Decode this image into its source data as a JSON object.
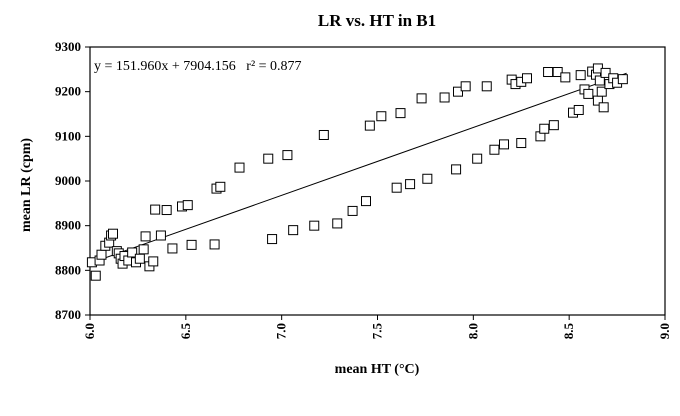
{
  "chart_data": {
    "type": "scatter",
    "title": "LR vs. HT in B1",
    "xlabel": "mean HT (°C)",
    "ylabel": "mean LR (cpm)",
    "xlim": [
      6.0,
      9.0
    ],
    "ylim": [
      8700,
      9300
    ],
    "x_ticks": [
      "6.0",
      "6.5",
      "7.0",
      "7.5",
      "8.0",
      "8.5",
      "9.0"
    ],
    "y_ticks": [
      "8700",
      "8800",
      "8900",
      "9000",
      "9100",
      "9200",
      "9300"
    ],
    "x_tick_values": [
      6.0,
      6.5,
      7.0,
      7.5,
      8.0,
      8.5,
      9.0
    ],
    "y_tick_values": [
      8700,
      8800,
      8900,
      9000,
      9100,
      9200,
      9300
    ],
    "annotation": "y = 151.960x + 7904.156   r² = 0.877",
    "grid": false,
    "legend": "none",
    "marker": "open-square",
    "fit_line": {
      "slope": 151.96,
      "intercept": 7904.156,
      "x_range": [
        6.0,
        8.8
      ]
    },
    "points": [
      [
        6.01,
        8818
      ],
      [
        6.03,
        8788
      ],
      [
        6.05,
        8822
      ],
      [
        6.06,
        8835
      ],
      [
        6.08,
        8855
      ],
      [
        6.1,
        8862
      ],
      [
        6.11,
        8878
      ],
      [
        6.12,
        8882
      ],
      [
        6.14,
        8843
      ],
      [
        6.15,
        8838
      ],
      [
        6.16,
        8826
      ],
      [
        6.17,
        8815
      ],
      [
        6.18,
        8832
      ],
      [
        6.2,
        8822
      ],
      [
        6.22,
        8840
      ],
      [
        6.24,
        8818
      ],
      [
        6.26,
        8826
      ],
      [
        6.28,
        8847
      ],
      [
        6.29,
        8876
      ],
      [
        6.31,
        8809
      ],
      [
        6.33,
        8820
      ],
      [
        6.34,
        8936
      ],
      [
        6.37,
        8878
      ],
      [
        6.4,
        8935
      ],
      [
        6.43,
        8849
      ],
      [
        6.48,
        8943
      ],
      [
        6.51,
        8946
      ],
      [
        6.53,
        8857
      ],
      [
        6.65,
        8858
      ],
      [
        6.66,
        8983
      ],
      [
        6.68,
        8987
      ],
      [
        6.78,
        9030
      ],
      [
        6.93,
        9050
      ],
      [
        6.95,
        8870
      ],
      [
        7.03,
        9058
      ],
      [
        7.06,
        8890
      ],
      [
        7.17,
        8900
      ],
      [
        7.22,
        9103
      ],
      [
        7.29,
        8905
      ],
      [
        7.37,
        8933
      ],
      [
        7.44,
        8955
      ],
      [
        7.46,
        9124
      ],
      [
        7.52,
        9145
      ],
      [
        7.6,
        8985
      ],
      [
        7.62,
        9152
      ],
      [
        7.67,
        8993
      ],
      [
        7.73,
        9185
      ],
      [
        7.76,
        9005
      ],
      [
        7.85,
        9187
      ],
      [
        7.91,
        9026
      ],
      [
        7.92,
        9200
      ],
      [
        7.96,
        9212
      ],
      [
        8.02,
        9050
      ],
      [
        8.07,
        9212
      ],
      [
        8.11,
        9070
      ],
      [
        8.16,
        9082
      ],
      [
        8.2,
        9227
      ],
      [
        8.22,
        9217
      ],
      [
        8.25,
        9222
      ],
      [
        8.25,
        9085
      ],
      [
        8.28,
        9230
      ],
      [
        8.35,
        9100
      ],
      [
        8.37,
        9117
      ],
      [
        8.39,
        9244
      ],
      [
        8.42,
        9125
      ],
      [
        8.44,
        9244
      ],
      [
        8.48,
        9232
      ],
      [
        8.52,
        9153
      ],
      [
        8.55,
        9159
      ],
      [
        8.56,
        9237
      ],
      [
        8.58,
        9205
      ],
      [
        8.6,
        9195
      ],
      [
        8.62,
        9245
      ],
      [
        8.64,
        9238
      ],
      [
        8.65,
        9252
      ],
      [
        8.65,
        9180
      ],
      [
        8.66,
        9225
      ],
      [
        8.67,
        9200
      ],
      [
        8.68,
        9165
      ],
      [
        8.69,
        9242
      ],
      [
        8.71,
        9217
      ],
      [
        8.73,
        9230
      ],
      [
        8.75,
        9220
      ],
      [
        8.78,
        9228
      ]
    ]
  }
}
